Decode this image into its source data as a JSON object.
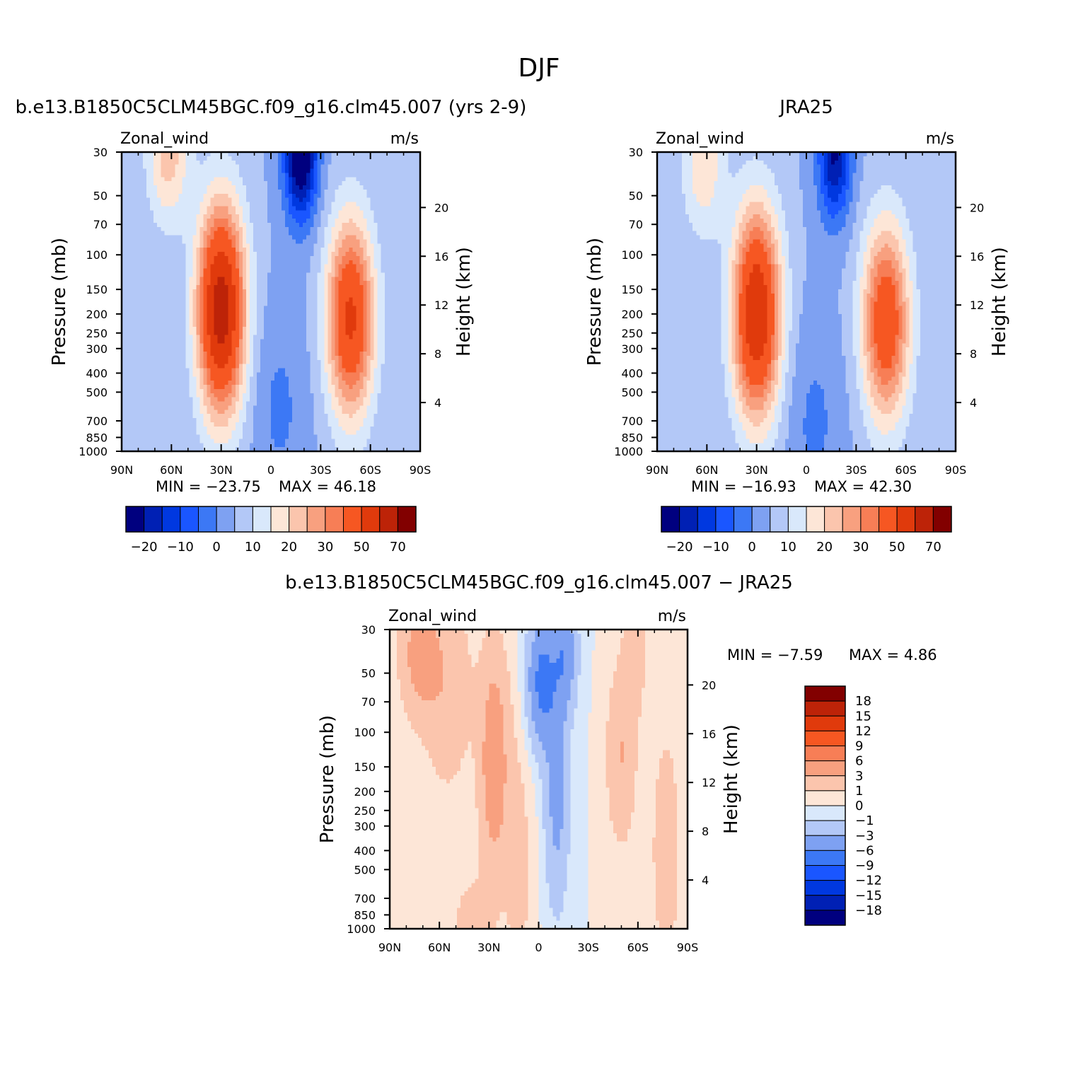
{
  "figure": {
    "title": "DJF"
  },
  "palettes": {
    "abs": [
      "#00007f",
      "#0020b4",
      "#0038e0",
      "#1a56ff",
      "#3c78f5",
      "#7ea1f2",
      "#b3c8f7",
      "#d9e8fb",
      "#fde6d7",
      "#fbc5ad",
      "#f8a07f",
      "#f77e56",
      "#f65722",
      "#e03a0c",
      "#bd2308",
      "#820000"
    ],
    "diff": [
      "#00007f",
      "#0020b4",
      "#0038e0",
      "#1a56ff",
      "#3c78f5",
      "#7ea1f2",
      "#b3c8f7",
      "#d9e8fb",
      "#fde6d7",
      "#fbc5ad",
      "#f8a07f",
      "#f77e56",
      "#f65722",
      "#e03a0c",
      "#bd2308",
      "#820000"
    ]
  },
  "chart_data": [
    {
      "type": "heatmap",
      "title": "b.e13.B1850C5CLM45BGC.f09_g16.clm45.007 (yrs 2-9)",
      "left_label": "Zonal_wind",
      "right_label": "m/s",
      "xlabel": "",
      "ylabel": "Pressure (mb)",
      "ylabel_right": "Height (km)",
      "x_ticks": [
        "90N",
        "60N",
        "30N",
        "0",
        "30S",
        "60S",
        "90S"
      ],
      "y_ticks": [
        30,
        50,
        70,
        100,
        150,
        200,
        250,
        300,
        400,
        500,
        700,
        850,
        1000
      ],
      "y_right_ticks": [
        20,
        16,
        12,
        8,
        4
      ],
      "ylim": [
        1000,
        30
      ],
      "y_scale": "log",
      "min_text": "MIN = −23.75",
      "max_text": "MAX =   46.18",
      "min": -23.75,
      "max": 46.18,
      "colorbar_labels": [
        "−20",
        "−10",
        "0",
        "10",
        "20",
        "30",
        "50",
        "70"
      ],
      "blobs": [
        {
          "lat": 30,
          "p": 190,
          "amp": 56,
          "wlat": 10,
          "wlnp": 0.85
        },
        {
          "lat": 62,
          "p": 30,
          "amp": 18,
          "wlat": 9,
          "wlnp": 0.6
        },
        {
          "lat": -48,
          "p": 210,
          "amp": 42,
          "wlat": 10,
          "wlnp": 0.8
        },
        {
          "lat": -18,
          "p": 30,
          "amp": -34,
          "wlat": 7,
          "wlnp": 0.55
        },
        {
          "lat": -5,
          "p": 600,
          "amp": -6,
          "wlat": 12,
          "wlnp": 0.8
        }
      ]
    },
    {
      "type": "heatmap",
      "title": "JRA25",
      "left_label": "Zonal_wind",
      "right_label": "m/s",
      "xlabel": "",
      "ylabel": "Pressure (mb)",
      "ylabel_right": "Height (km)",
      "x_ticks": [
        "90N",
        "60N",
        "30N",
        "0",
        "30S",
        "60S",
        "90S"
      ],
      "y_ticks": [
        30,
        50,
        70,
        100,
        150,
        200,
        250,
        300,
        400,
        500,
        700,
        850,
        1000
      ],
      "y_right_ticks": [
        20,
        16,
        12,
        8,
        4
      ],
      "ylim": [
        1000,
        30
      ],
      "y_scale": "log",
      "min_text": "MIN = −16.93",
      "max_text": "MAX =   42.30",
      "min": -16.93,
      "max": 42.3,
      "colorbar_labels": [
        "−20",
        "−10",
        "0",
        "10",
        "20",
        "30",
        "50",
        "70"
      ],
      "blobs": [
        {
          "lat": 30,
          "p": 200,
          "amp": 50,
          "wlat": 10,
          "wlnp": 0.85
        },
        {
          "lat": 62,
          "p": 35,
          "amp": 14,
          "wlat": 9,
          "wlnp": 0.6
        },
        {
          "lat": -48,
          "p": 220,
          "amp": 38,
          "wlat": 10,
          "wlnp": 0.8
        },
        {
          "lat": -17,
          "p": 30,
          "amp": -26,
          "wlat": 7,
          "wlnp": 0.55
        },
        {
          "lat": -5,
          "p": 700,
          "amp": -6,
          "wlat": 12,
          "wlnp": 0.8
        }
      ]
    },
    {
      "type": "heatmap",
      "title": "b.e13.B1850C5CLM45BGC.f09_g16.clm45.007 − JRA25",
      "left_label": "Zonal_wind",
      "right_label": "m/s",
      "xlabel": "",
      "ylabel": "Pressure (mb)",
      "ylabel_right": "Height (km)",
      "x_ticks": [
        "90N",
        "60N",
        "30N",
        "0",
        "30S",
        "60S",
        "90S"
      ],
      "y_ticks": [
        30,
        50,
        70,
        100,
        150,
        200,
        250,
        300,
        400,
        500,
        700,
        850,
        1000
      ],
      "y_right_ticks": [
        20,
        16,
        12,
        8,
        4
      ],
      "ylim": [
        1000,
        30
      ],
      "y_scale": "log",
      "min_text": "MIN =   −7.59",
      "max_text": "MAX =     4.86",
      "min": -7.59,
      "max": 4.86,
      "colorbar_labels": [
        "18",
        "15",
        "12",
        "9",
        "6",
        "3",
        "1",
        "0",
        "−1",
        "−3",
        "−6",
        "−9",
        "−12",
        "−15",
        "−18"
      ],
      "blobs": [
        {
          "lat": 72,
          "p": 40,
          "amp": 4,
          "wlat": 8,
          "wlnp": 0.5
        },
        {
          "lat": 55,
          "p": 60,
          "amp": 2.5,
          "wlat": 10,
          "wlnp": 0.8
        },
        {
          "lat": 27,
          "p": 140,
          "amp": 5,
          "wlat": 6,
          "wlnp": 0.9
        },
        {
          "lat": 12,
          "p": 500,
          "amp": 1.5,
          "wlat": 6,
          "wlnp": 1.2
        },
        {
          "lat": -2,
          "p": 55,
          "amp": -7,
          "wlat": 6,
          "wlnp": 0.5
        },
        {
          "lat": -16,
          "p": 40,
          "amp": -5,
          "wlat": 5,
          "wlnp": 0.45
        },
        {
          "lat": -11,
          "p": 200,
          "amp": -4,
          "wlat": 5,
          "wlnp": 0.9
        },
        {
          "lat": -50,
          "p": 130,
          "amp": 3,
          "wlat": 6,
          "wlnp": 0.7
        },
        {
          "lat": -58,
          "p": 40,
          "amp": 2,
          "wlat": 5,
          "wlnp": 0.5
        },
        {
          "lat": -77,
          "p": 400,
          "amp": 3,
          "wlat": 5,
          "wlnp": 0.8
        },
        {
          "lat": 40,
          "p": 1000,
          "amp": 2,
          "wlat": 8,
          "wlnp": 0.4
        }
      ]
    }
  ]
}
